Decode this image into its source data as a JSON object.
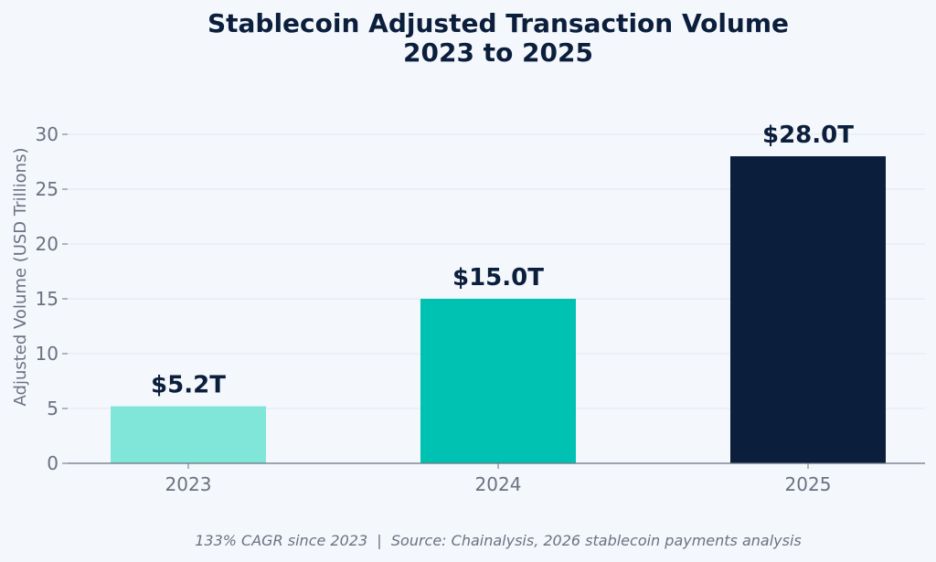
{
  "chart_data": {
    "type": "bar",
    "title_lines": [
      "Stablecoin Adjusted Transaction Volume",
      "2023 to 2025"
    ],
    "xlabel": "",
    "ylabel": "Adjusted Volume (USD Trillions)",
    "categories": [
      "2023",
      "2024",
      "2025"
    ],
    "values": [
      5.2,
      15.0,
      28.0
    ],
    "data_labels": [
      "$5.2T",
      "$15.0T",
      "$28.0T"
    ],
    "bar_colors": [
      "#7fe6d9",
      "#00c2b2",
      "#0b1f3c"
    ],
    "ylim": [
      0,
      30
    ],
    "yticks": [
      0,
      5,
      10,
      15,
      20,
      25,
      30
    ],
    "grid": true,
    "footnote": "133% CAGR since 2023  |  Source: Chainalysis, 2026 stablecoin payments analysis"
  },
  "colors": {
    "background": "#f4f7fc",
    "title": "#0b1f3c",
    "tick_text": "#6b7280",
    "grid": "#e3e7ee",
    "axis": "#6b7280"
  }
}
